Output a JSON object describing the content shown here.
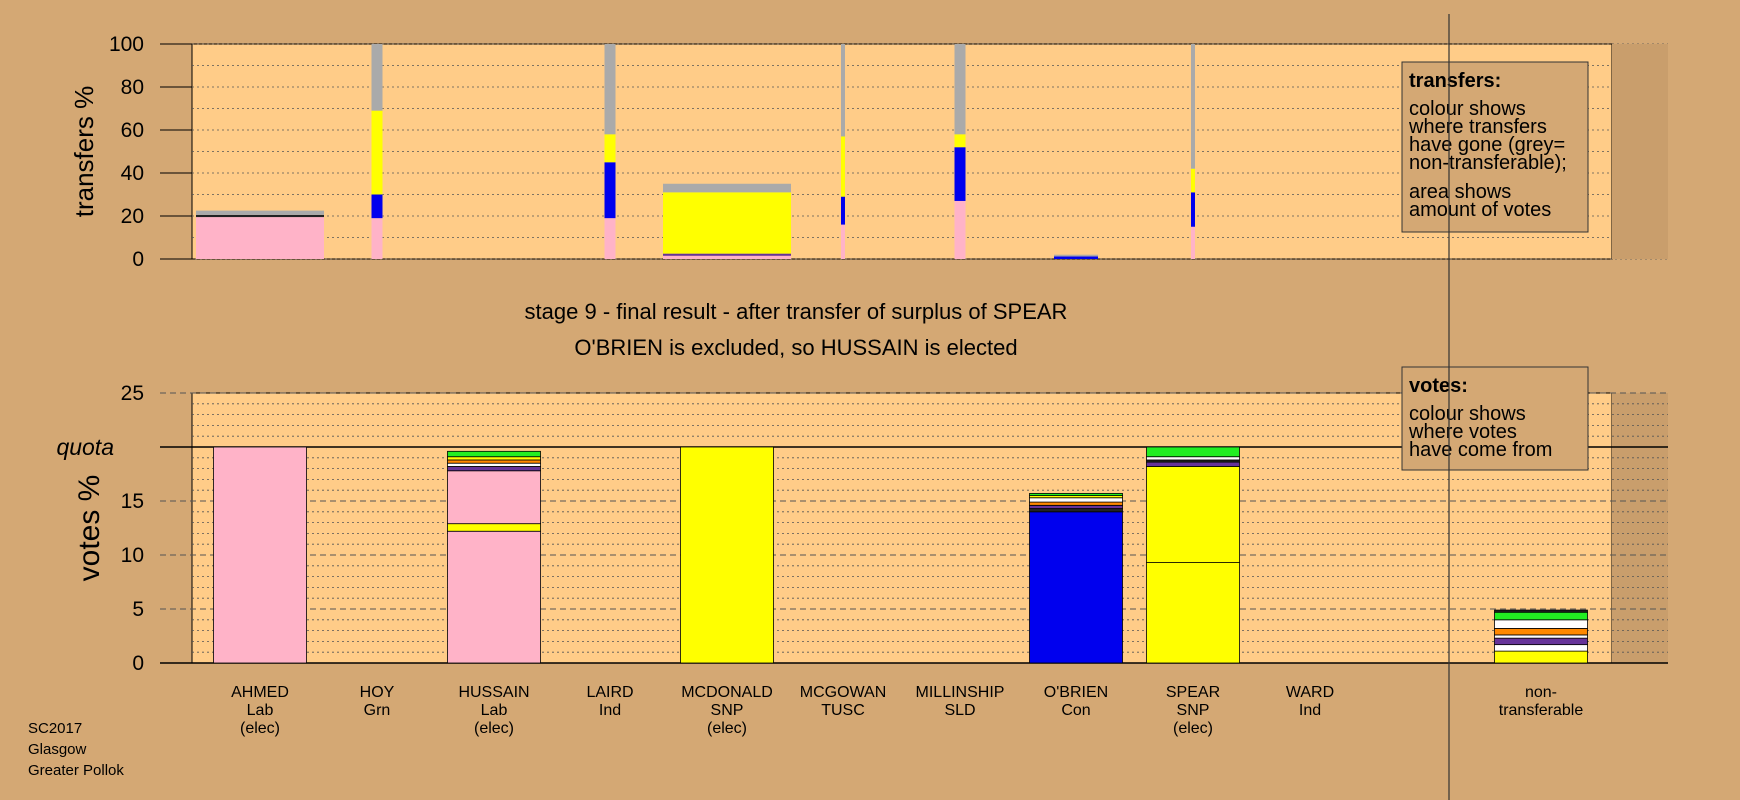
{
  "colors": {
    "background": "#d4a874",
    "plot_area": "#ffcc88",
    "Lab": "#ffb3c8",
    "SNP": "#ffff00",
    "Con": "#0000ee",
    "Grn": "#22ee22",
    "nontransferable": "#aaaaaa",
    "other_1": "#ff8800",
    "other_2": "#ffffff",
    "other_3": "#663399",
    "other_4": "#222222"
  },
  "meta": {
    "line1": "SC2017",
    "line2": "Glasgow",
    "line3": "Greater Pollok"
  },
  "stage": {
    "title": "stage 9 - final result - after transfer of surplus of SPEAR",
    "subtitle": "O'BRIEN is excluded, so HUSSAIN is elected"
  },
  "legend_transfers": {
    "title": "transfers:",
    "lines": [
      "colour shows",
      "where transfers",
      "have gone (grey=",
      "non-transferable);",
      "area shows",
      "amount of votes"
    ]
  },
  "legend_votes": {
    "title": "votes:",
    "lines": [
      "colour shows",
      "where votes",
      "have come from"
    ]
  },
  "candidates": [
    {
      "name": "AHMED",
      "party": "Lab",
      "status": "(elec)"
    },
    {
      "name": "HOY",
      "party": "Grn",
      "status": ""
    },
    {
      "name": "HUSSAIN",
      "party": "Lab",
      "status": "(elec)"
    },
    {
      "name": "LAIRD",
      "party": "Ind",
      "status": ""
    },
    {
      "name": "MCDONALD",
      "party": "SNP",
      "status": "(elec)"
    },
    {
      "name": "MCGOWAN",
      "party": "TUSC",
      "status": ""
    },
    {
      "name": "MILLINSHIP",
      "party": "SLD",
      "status": ""
    },
    {
      "name": "O'BRIEN",
      "party": "Con",
      "status": ""
    },
    {
      "name": "SPEAR",
      "party": "SNP",
      "status": "(elec)"
    },
    {
      "name": "WARD",
      "party": "Ind",
      "status": ""
    }
  ],
  "nontransferable_label": [
    "non-",
    "transferable"
  ],
  "chart_data": [
    {
      "type": "bar",
      "ylabel": "transfers %",
      "ylim": [
        0,
        100
      ],
      "yticks": [
        0,
        20,
        40,
        60,
        80,
        100
      ],
      "grid": "dotted every 10",
      "categories": [
        "AHMED",
        "HOY",
        "HUSSAIN",
        "LAIRD",
        "MCDONALD",
        "MCGOWAN",
        "MILLINSHIP",
        "O'BRIEN",
        "SPEAR",
        "WARD"
      ],
      "bars": [
        {
          "candidate": "AHMED",
          "width_share": "wide",
          "segments": [
            {
              "color": "Lab",
              "from": 0,
              "to": 19.5
            },
            {
              "color": "other_4",
              "from": 19.5,
              "to": 20.5
            },
            {
              "color": "nontransferable",
              "from": 20.5,
              "to": 22.5
            }
          ]
        },
        {
          "candidate": "HOY",
          "width_share": "narrow",
          "segments": [
            {
              "color": "Lab",
              "from": 0,
              "to": 19
            },
            {
              "color": "Con",
              "from": 19,
              "to": 30
            },
            {
              "color": "SNP",
              "from": 30,
              "to": 69
            },
            {
              "color": "nontransferable",
              "from": 69,
              "to": 100
            }
          ]
        },
        {
          "candidate": "LAIRD",
          "width_share": "narrow",
          "segments": [
            {
              "color": "Lab",
              "from": 0,
              "to": 19
            },
            {
              "color": "Con",
              "from": 19,
              "to": 45
            },
            {
              "color": "SNP",
              "from": 45,
              "to": 58
            },
            {
              "color": "nontransferable",
              "from": 58,
              "to": 100
            }
          ]
        },
        {
          "candidate": "MCDONALD",
          "width_share": "wide",
          "segments": [
            {
              "color": "Lab",
              "from": 0,
              "to": 1.5
            },
            {
              "color": "other_3",
              "from": 1.5,
              "to": 2.5
            },
            {
              "color": "SNP",
              "from": 2.5,
              "to": 31
            },
            {
              "color": "nontransferable",
              "from": 31,
              "to": 35
            }
          ]
        },
        {
          "candidate": "MCGOWAN",
          "width_share": "thin",
          "segments": [
            {
              "color": "Lab",
              "from": 0,
              "to": 16
            },
            {
              "color": "Con",
              "from": 16,
              "to": 29
            },
            {
              "color": "SNP",
              "from": 29,
              "to": 57
            },
            {
              "color": "nontransferable",
              "from": 57,
              "to": 100
            }
          ]
        },
        {
          "candidate": "MILLINSHIP",
          "width_share": "narrow",
          "segments": [
            {
              "color": "Lab",
              "from": 0,
              "to": 27
            },
            {
              "color": "Con",
              "from": 27,
              "to": 52
            },
            {
              "color": "SNP",
              "from": 52,
              "to": 58
            },
            {
              "color": "nontransferable",
              "from": 58,
              "to": 100
            }
          ]
        },
        {
          "candidate": "O'BRIEN",
          "width_share": "medium",
          "segments": [
            {
              "color": "Con",
              "from": 0,
              "to": 1.2
            },
            {
              "color": "nontransferable",
              "from": 1.2,
              "to": 2
            }
          ]
        },
        {
          "candidate": "SPEAR",
          "width_share": "thin",
          "segments": [
            {
              "color": "Lab",
              "from": 0,
              "to": 15
            },
            {
              "color": "Con",
              "from": 15,
              "to": 31
            },
            {
              "color": "SNP",
              "from": 31,
              "to": 42
            },
            {
              "color": "nontransferable",
              "from": 42,
              "to": 100
            }
          ]
        }
      ]
    },
    {
      "type": "bar",
      "ylabel": "votes %",
      "ylim": [
        0,
        25
      ],
      "yticks": [
        0,
        5,
        10,
        15,
        20,
        25
      ],
      "quota": 20,
      "quota_label": "quota",
      "grid": "dotted every 1, dashed every 5",
      "categories": [
        "AHMED",
        "HOY",
        "HUSSAIN",
        "LAIRD",
        "MCDONALD",
        "MCGOWAN",
        "MILLINSHIP",
        "O'BRIEN",
        "SPEAR",
        "WARD",
        "non-transferable"
      ],
      "bars": [
        {
          "candidate": "AHMED",
          "segments": [
            {
              "color": "Lab",
              "from": 0,
              "to": 20
            }
          ]
        },
        {
          "candidate": "HUSSAIN",
          "segments": [
            {
              "color": "Lab",
              "from": 0,
              "to": 12.2
            },
            {
              "color": "SNP",
              "from": 12.2,
              "to": 12.9
            },
            {
              "color": "Lab",
              "from": 12.9,
              "to": 17.8
            },
            {
              "color": "other_3",
              "from": 17.8,
              "to": 18.2
            },
            {
              "color": "other_2",
              "from": 18.2,
              "to": 18.5
            },
            {
              "color": "other_1",
              "from": 18.5,
              "to": 18.8
            },
            {
              "color": "SNP",
              "from": 18.8,
              "to": 19.1
            },
            {
              "color": "Grn",
              "from": 19.1,
              "to": 19.6
            }
          ]
        },
        {
          "candidate": "MCDONALD",
          "segments": [
            {
              "color": "SNP",
              "from": 0,
              "to": 20
            }
          ]
        },
        {
          "candidate": "O'BRIEN",
          "segments": [
            {
              "color": "Con",
              "from": 0,
              "to": 14
            },
            {
              "color": "other_4",
              "from": 14,
              "to": 14.3
            },
            {
              "color": "other_3",
              "from": 14.3,
              "to": 14.6
            },
            {
              "color": "other_1",
              "from": 14.6,
              "to": 14.9
            },
            {
              "color": "other_2",
              "from": 14.9,
              "to": 15.3
            },
            {
              "color": "SNP",
              "from": 15.3,
              "to": 15.5
            },
            {
              "color": "Grn",
              "from": 15.5,
              "to": 15.7
            }
          ]
        },
        {
          "candidate": "SPEAR",
          "segments": [
            {
              "color": "SNP",
              "from": 0,
              "to": 9.3
            },
            {
              "color": "SNP",
              "from": 9.3,
              "to": 18.2
            },
            {
              "color": "other_3",
              "from": 18.2,
              "to": 18.6
            },
            {
              "color": "other_4",
              "from": 18.6,
              "to": 18.8
            },
            {
              "color": "other_2",
              "from": 18.8,
              "to": 19.1
            },
            {
              "color": "Grn",
              "from": 19.1,
              "to": 20
            }
          ]
        },
        {
          "candidate": "non-transferable",
          "segments": [
            {
              "color": "SNP",
              "from": 0,
              "to": 1.1
            },
            {
              "color": "other_2",
              "from": 1.1,
              "to": 1.7
            },
            {
              "color": "other_3",
              "from": 1.7,
              "to": 2.3
            },
            {
              "color": "other_2",
              "from": 2.3,
              "to": 2.6
            },
            {
              "color": "other_1",
              "from": 2.6,
              "to": 3.2
            },
            {
              "color": "other_2",
              "from": 3.2,
              "to": 4.0
            },
            {
              "color": "Grn",
              "from": 4.0,
              "to": 4.7
            },
            {
              "color": "other_4",
              "from": 4.7,
              "to": 4.9
            }
          ]
        }
      ]
    }
  ]
}
